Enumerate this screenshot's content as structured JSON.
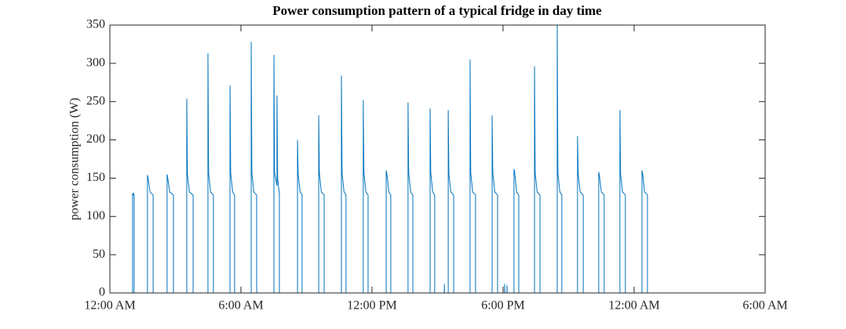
{
  "chart_data": {
    "type": "line",
    "title": "Power consumption pattern of a typical fridge in day time",
    "y_label": "power consumption (W)",
    "color": "#0072bd",
    "xlim": [
      0,
      30
    ],
    "ylim": [
      0,
      350
    ],
    "xticks": [
      {
        "value": 0,
        "label": "12:00 AM"
      },
      {
        "value": 6,
        "label": "6:00 AM"
      },
      {
        "value": 12,
        "label": "12:00 PM"
      },
      {
        "value": 18,
        "label": "6:00 PM"
      },
      {
        "value": 24,
        "label": "12:00 AM"
      },
      {
        "value": 30,
        "label": "6:00 AM"
      }
    ],
    "yticks": [
      0,
      50,
      100,
      150,
      200,
      250,
      300,
      350
    ],
    "x": [
      0,
      1.04,
      1.04,
      1.06,
      1.08,
      1.11,
      1.11,
      1.72,
      1.72,
      1.75,
      1.84,
      1.98,
      1.98,
      2.62,
      2.62,
      2.65,
      2.74,
      2.91,
      2.91,
      3.52,
      3.52,
      3.55,
      3.64,
      3.81,
      3.81,
      4.49,
      4.49,
      4.52,
      4.61,
      4.74,
      4.74,
      5.5,
      5.5,
      5.53,
      5.62,
      5.71,
      5.71,
      6.47,
      6.47,
      6.5,
      6.59,
      6.72,
      6.72,
      7.51,
      7.51,
      7.54,
      7.65,
      7.65,
      7.68,
      7.76,
      7.76,
      8.59,
      8.59,
      8.62,
      8.71,
      8.8,
      8.8,
      9.56,
      9.56,
      9.59,
      9.68,
      9.81,
      9.81,
      10.6,
      10.6,
      10.63,
      10.72,
      10.81,
      10.81,
      11.6,
      11.6,
      11.63,
      11.72,
      11.82,
      11.82,
      12.65,
      12.65,
      12.68,
      12.77,
      12.86,
      12.86,
      13.65,
      13.65,
      13.68,
      13.77,
      13.87,
      13.87,
      14.66,
      14.66,
      14.69,
      14.78,
      14.87,
      14.87,
      15.31,
      15.31,
      15.32,
      15.49,
      15.49,
      15.52,
      15.61,
      15.74,
      15.74,
      16.49,
      16.49,
      16.52,
      16.61,
      16.74,
      16.74,
      17.5,
      17.5,
      17.53,
      17.62,
      17.75,
      17.75,
      18.07,
      18.07,
      18.08,
      18.18,
      18.18,
      18.19,
      18.5,
      18.5,
      18.53,
      18.62,
      18.72,
      18.72,
      19.44,
      19.44,
      19.47,
      19.56,
      19.69,
      19.69,
      20.48,
      20.48,
      20.51,
      20.6,
      20.69,
      20.69,
      21.41,
      21.41,
      21.44,
      21.53,
      21.67,
      21.67,
      22.38,
      22.38,
      22.41,
      22.5,
      22.63,
      22.63,
      23.35,
      23.35,
      23.38,
      23.47,
      23.6,
      23.6,
      24.36,
      24.36,
      24.39,
      24.48,
      24.61,
      24.61,
      25.08
    ],
    "values": [
      0,
      0,
      130,
      127,
      130,
      128,
      0,
      0,
      154,
      150,
      132,
      128,
      0,
      0,
      155,
      150,
      132,
      128,
      0,
      0,
      254,
      155,
      132,
      128,
      0,
      0,
      313,
      157,
      132,
      128,
      0,
      0,
      271,
      157,
      132,
      128,
      0,
      0,
      328,
      157,
      132,
      128,
      0,
      0,
      311,
      157,
      140,
      258,
      150,
      128,
      0,
      0,
      200,
      155,
      132,
      128,
      0,
      0,
      232,
      157,
      132,
      128,
      0,
      0,
      284,
      157,
      132,
      128,
      0,
      0,
      252,
      157,
      132,
      128,
      0,
      0,
      160,
      156,
      132,
      128,
      0,
      0,
      249,
      157,
      132,
      128,
      0,
      0,
      241,
      157,
      132,
      128,
      0,
      0,
      12,
      0,
      0,
      239,
      155,
      132,
      128,
      0,
      0,
      305,
      157,
      132,
      128,
      0,
      0,
      232,
      157,
      132,
      128,
      0,
      0,
      12,
      0,
      0,
      10,
      0,
      0,
      162,
      158,
      132,
      128,
      0,
      0,
      296,
      157,
      132,
      128,
      0,
      0,
      350,
      157,
      132,
      128,
      0,
      0,
      205,
      155,
      132,
      128,
      0,
      0,
      158,
      154,
      132,
      128,
      0,
      0,
      239,
      155,
      132,
      128,
      0,
      0,
      160,
      156,
      132,
      128,
      0,
      0
    ]
  }
}
